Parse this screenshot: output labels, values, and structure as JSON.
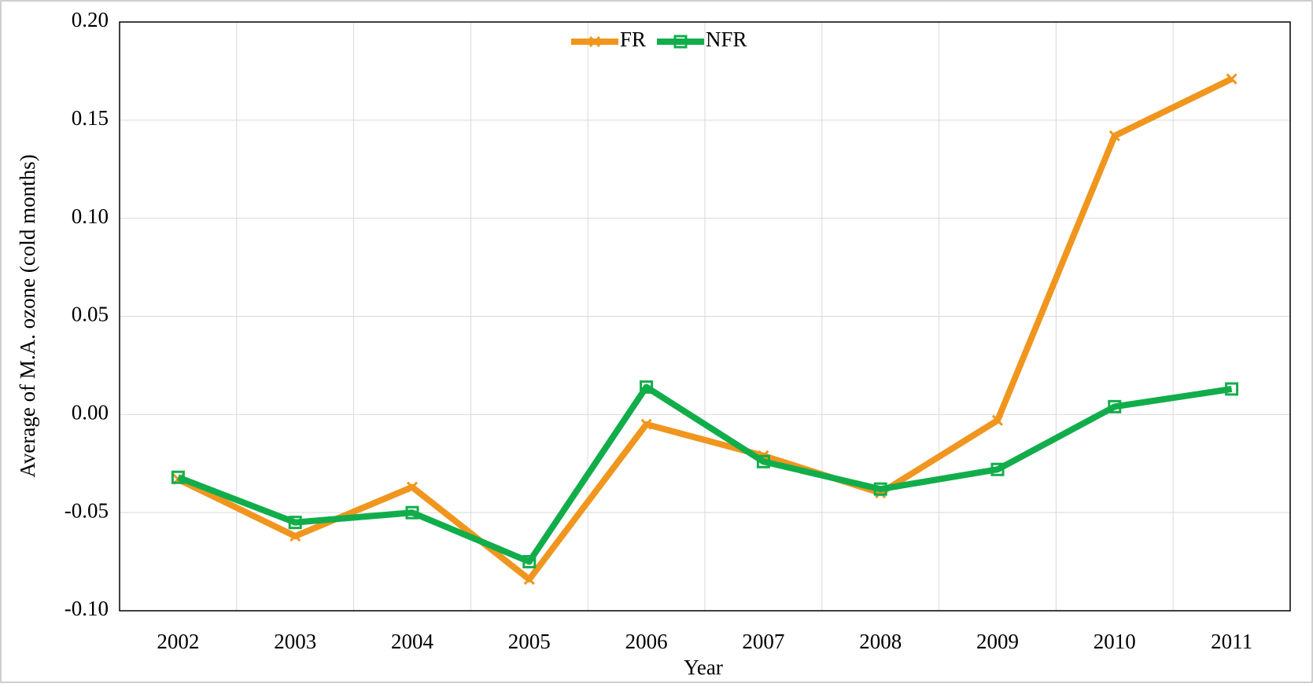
{
  "chart_data": {
    "type": "line",
    "xlabel": "Year",
    "ylabel": "Average of M.A. ozone (cold months)",
    "categories": [
      "2002",
      "2003",
      "2004",
      "2005",
      "2006",
      "2007",
      "2008",
      "2009",
      "2010",
      "2011"
    ],
    "series": [
      {
        "name": "FR",
        "color": "#f0961e",
        "marker": "x",
        "values": [
          -0.033,
          -0.062,
          -0.037,
          -0.084,
          -0.005,
          -0.021,
          -0.04,
          -0.003,
          0.142,
          0.171
        ]
      },
      {
        "name": "NFR",
        "color": "#12ad4b",
        "marker": "square",
        "values": [
          -0.032,
          -0.055,
          -0.05,
          -0.075,
          0.014,
          -0.024,
          -0.038,
          -0.028,
          0.004,
          0.013
        ]
      }
    ],
    "ylim": [
      -0.1,
      0.2
    ],
    "yticks": [
      {
        "value": -0.1,
        "label": "-0.10"
      },
      -0.05,
      {
        "value": 0,
        "label": "0.00"
      },
      0.05,
      {
        "value": 0.1,
        "label": "0.10"
      },
      0.15,
      {
        "value": 0.2,
        "label": "0.20"
      }
    ],
    "grid": true,
    "legend": "top"
  }
}
